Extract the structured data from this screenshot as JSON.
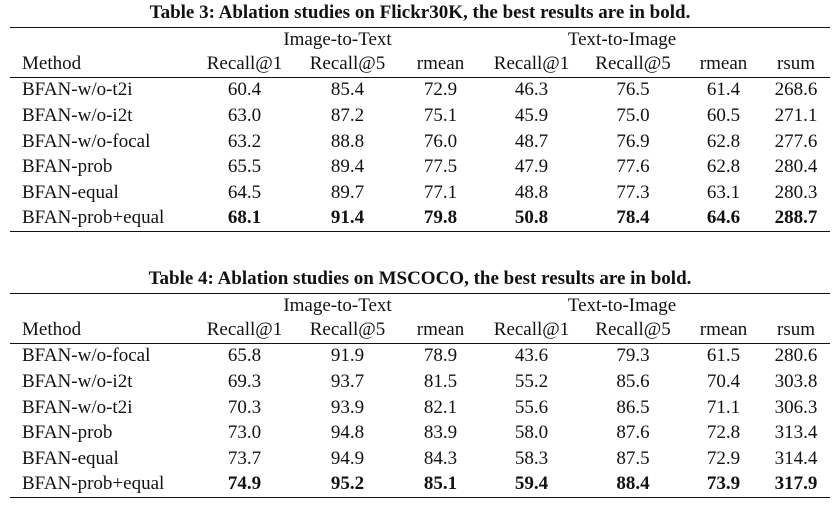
{
  "tables": [
    {
      "caption": "Table 3: Ablation studies on Flickr30K, the best results are in bold.",
      "group_headers": [
        "Image-to-Text",
        "Text-to-Image"
      ],
      "columns": [
        "Method",
        "Recall@1",
        "Recall@5",
        "rmean",
        "Recall@1",
        "Recall@5",
        "rmean",
        "rsum"
      ],
      "rows": [
        {
          "method": "BFAN-w/o-t2i",
          "values": [
            "60.4",
            "85.4",
            "72.9",
            "46.3",
            "76.5",
            "61.4",
            "268.6"
          ]
        },
        {
          "method": "BFAN-w/o-i2t",
          "values": [
            "63.0",
            "87.2",
            "75.1",
            "45.9",
            "75.0",
            "60.5",
            "271.1"
          ]
        },
        {
          "method": "BFAN-w/o-focal",
          "values": [
            "63.2",
            "88.8",
            "76.0",
            "48.7",
            "76.9",
            "62.8",
            "277.6"
          ]
        },
        {
          "method": "BFAN-prob",
          "values": [
            "65.5",
            "89.4",
            "77.5",
            "47.9",
            "77.6",
            "62.8",
            "280.4"
          ]
        },
        {
          "method": "BFAN-equal",
          "values": [
            "64.5",
            "89.7",
            "77.1",
            "48.8",
            "77.3",
            "63.1",
            "280.3"
          ]
        },
        {
          "method": "BFAN-prob+equal",
          "values": [
            "68.1",
            "91.4",
            "79.8",
            "50.8",
            "78.4",
            "64.6",
            "288.7"
          ]
        }
      ]
    },
    {
      "caption": "Table 4: Ablation studies on MSCOCO, the best results are in bold.",
      "group_headers": [
        "Image-to-Text",
        "Text-to-Image"
      ],
      "columns": [
        "Method",
        "Recall@1",
        "Recall@5",
        "rmean",
        "Recall@1",
        "Recall@5",
        "rmean",
        "rsum"
      ],
      "rows": [
        {
          "method": "BFAN-w/o-focal",
          "values": [
            "65.8",
            "91.9",
            "78.9",
            "43.6",
            "79.3",
            "61.5",
            "280.6"
          ]
        },
        {
          "method": "BFAN-w/o-i2t",
          "values": [
            "69.3",
            "93.7",
            "81.5",
            "55.2",
            "85.6",
            "70.4",
            "303.8"
          ]
        },
        {
          "method": "BFAN-w/o-t2i",
          "values": [
            "70.3",
            "93.9",
            "82.1",
            "55.6",
            "86.5",
            "71.1",
            "306.3"
          ]
        },
        {
          "method": "BFAN-prob",
          "values": [
            "73.0",
            "94.8",
            "83.9",
            "58.0",
            "87.6",
            "72.8",
            "313.4"
          ]
        },
        {
          "method": "BFAN-equal",
          "values": [
            "73.7",
            "94.9",
            "84.3",
            "58.3",
            "87.5",
            "72.9",
            "314.4"
          ]
        },
        {
          "method": "BFAN-prob+equal",
          "values": [
            "74.9",
            "95.2",
            "85.1",
            "59.4",
            "88.4",
            "73.9",
            "317.9"
          ]
        }
      ]
    }
  ]
}
